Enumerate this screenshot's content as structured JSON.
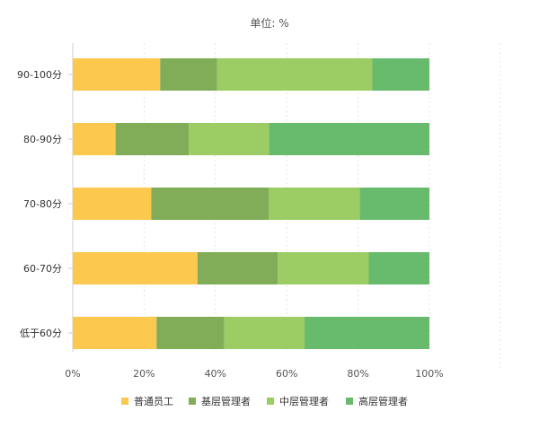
{
  "chart_data": {
    "type": "bar",
    "orientation": "horizontal",
    "stacked": "percent",
    "title": "单位: %",
    "categories": [
      "90-100分",
      "80-90分",
      "70-80分",
      "60-70分",
      "低于60分"
    ],
    "series": [
      {
        "name": "普通员工",
        "color": "#FCC84E",
        "values": [
          24.5,
          12,
          22,
          35,
          23.5
        ]
      },
      {
        "name": "基层管理者",
        "color": "#81AD58",
        "values": [
          16,
          20.5,
          33,
          22.5,
          19
        ]
      },
      {
        "name": "中层管理者",
        "color": "#9CCC64",
        "values": [
          43.5,
          22.5,
          25.5,
          25.5,
          22.5
        ]
      },
      {
        "name": "高层管理者",
        "color": "#68BA6D",
        "values": [
          16,
          45,
          19.5,
          17,
          35
        ]
      }
    ],
    "x_ticks": [
      "0%",
      "20%",
      "40%",
      "60%",
      "80%",
      "100%"
    ],
    "xlim": [
      0,
      100
    ],
    "grid": "vertical-dashed",
    "legend_position": "bottom"
  }
}
